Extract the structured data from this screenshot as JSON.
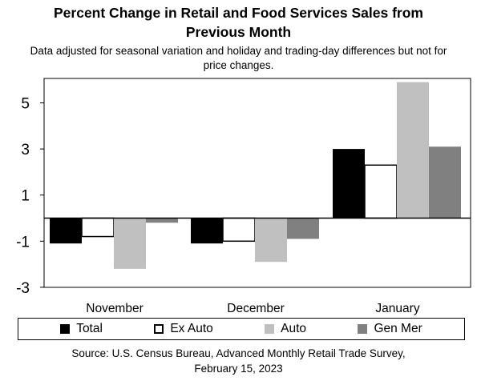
{
  "header": {
    "title_line1": "Percent Change in Retail and Food Services Sales from",
    "title_line2": "Previous Month",
    "subtitle_line1": "Data adjusted for seasonal variation and holiday and trading-day differences but not for",
    "subtitle_line2": "price changes."
  },
  "footer": {
    "source_line1": "Source: U.S. Census Bureau, Advanced Monthly Retail Trade Survey,",
    "source_line2": "February 15, 2023"
  },
  "chart_data": {
    "type": "bar",
    "title": "Percent Change in Retail and Food Services Sales from Previous Month",
    "subtitle": "Data adjusted for seasonal variation and holiday and trading-day differences but not for price changes.",
    "categories": [
      "November",
      "December",
      "January"
    ],
    "series": [
      {
        "name": "Total",
        "values": [
          -1.1,
          -1.1,
          3.0
        ],
        "color": "#000000",
        "outline": false
      },
      {
        "name": "Ex Auto",
        "values": [
          -0.8,
          -1.0,
          2.3
        ],
        "color": "#ffffff",
        "outline": true
      },
      {
        "name": "Auto",
        "values": [
          -2.2,
          -1.9,
          5.9
        ],
        "color": "#c0c0c0",
        "outline": false
      },
      {
        "name": "Gen Mer",
        "values": [
          -0.2,
          -0.9,
          3.1
        ],
        "color": "#808080",
        "outline": false
      }
    ],
    "yticks": [
      5,
      3,
      1,
      -1,
      -3
    ],
    "ylim": [
      -3,
      6
    ],
    "grid": false,
    "legend": "bottom",
    "xlabel": "",
    "ylabel": ""
  }
}
